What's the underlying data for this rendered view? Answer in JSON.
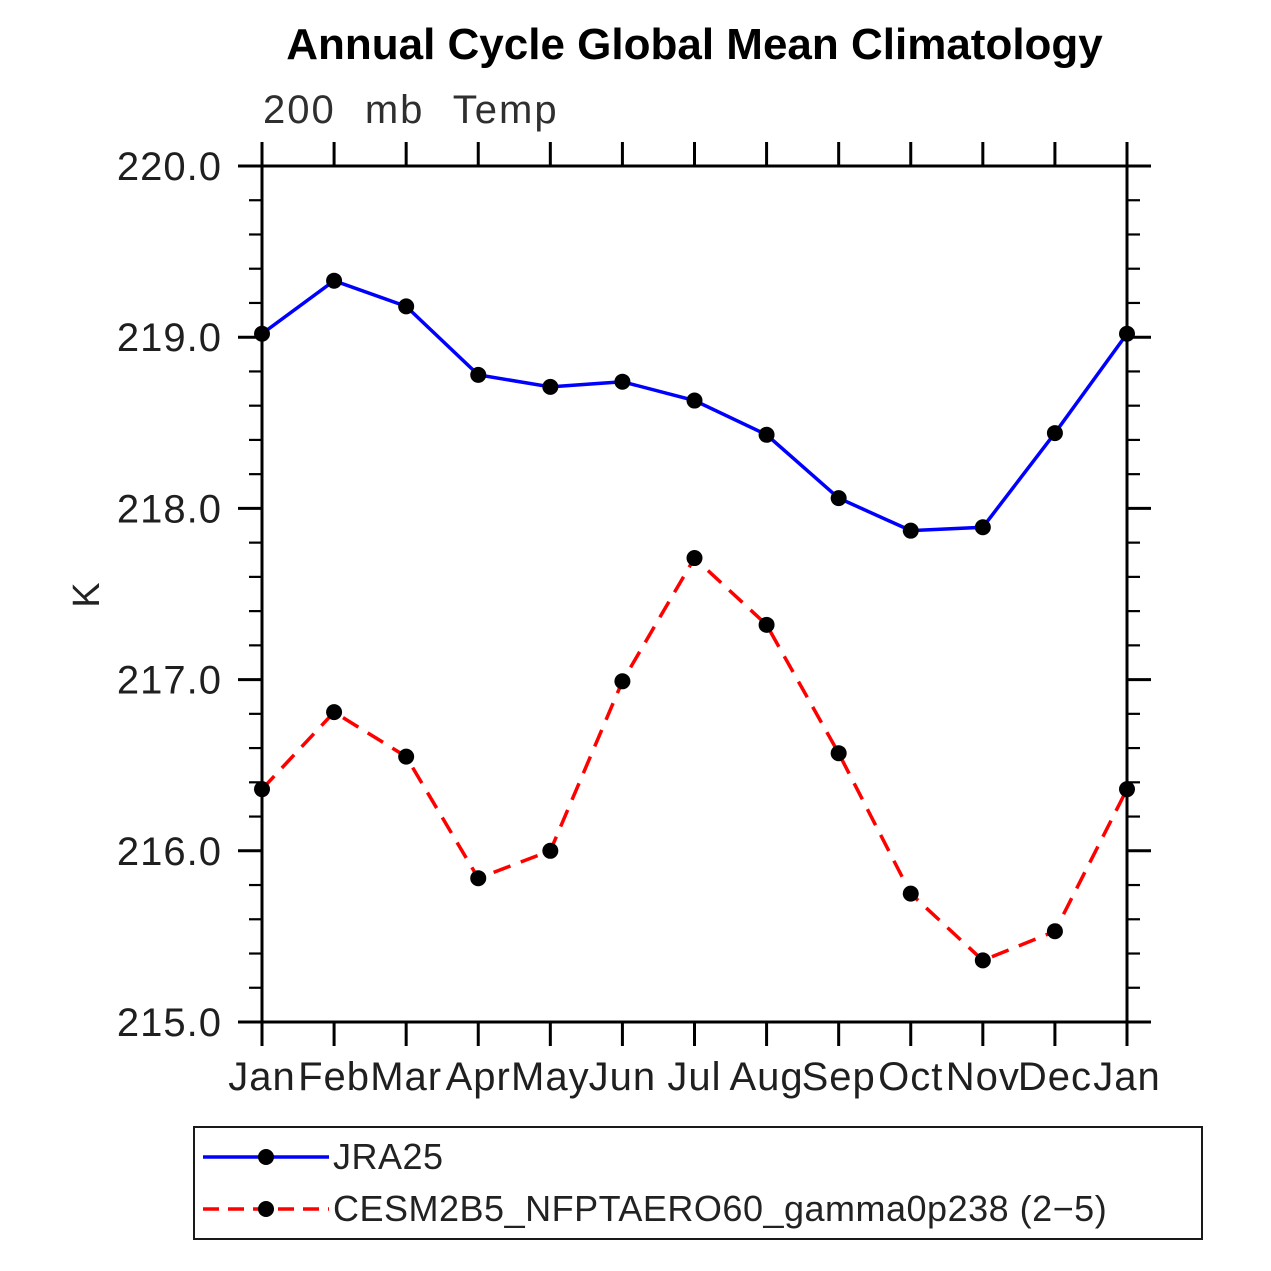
{
  "chart_data": {
    "type": "line",
    "title": "Annual Cycle Global Mean Climatology",
    "subtitle": "200 mb Temp",
    "xlabel": "",
    "ylabel": "K",
    "categories": [
      "Jan",
      "Feb",
      "Mar",
      "Apr",
      "May",
      "Jun",
      "Jul",
      "Aug",
      "Sep",
      "Oct",
      "Nov",
      "Dec",
      "Jan"
    ],
    "series": [
      {
        "name": "JRA25",
        "color": "#0000ff",
        "line_style": "solid",
        "marker": "filled-circle",
        "marker_color": "#000000",
        "values": [
          219.02,
          219.33,
          219.18,
          218.78,
          218.71,
          218.74,
          218.63,
          218.43,
          218.06,
          217.87,
          217.89,
          218.44,
          219.02
        ]
      },
      {
        "name": "CESM2B5_NFPTAERO60_gamma0p238 (2−5)",
        "color": "#ff0000",
        "line_style": "dashed",
        "marker": "filled-circle",
        "marker_color": "#000000",
        "values": [
          216.36,
          216.81,
          216.55,
          215.84,
          216.0,
          216.99,
          217.71,
          217.32,
          216.57,
          215.75,
          215.36,
          215.53,
          216.36
        ]
      }
    ],
    "ylim": [
      215.0,
      220.0
    ],
    "yticks": [
      215.0,
      216.0,
      217.0,
      218.0,
      219.0,
      220.0
    ],
    "ytick_labels": [
      "215.0",
      "216.0",
      "217.0",
      "218.0",
      "219.0",
      "220.0"
    ],
    "minor_tick_interval": 0.2,
    "grid": false,
    "legend_position": "bottom",
    "axis_color": "#000000"
  }
}
